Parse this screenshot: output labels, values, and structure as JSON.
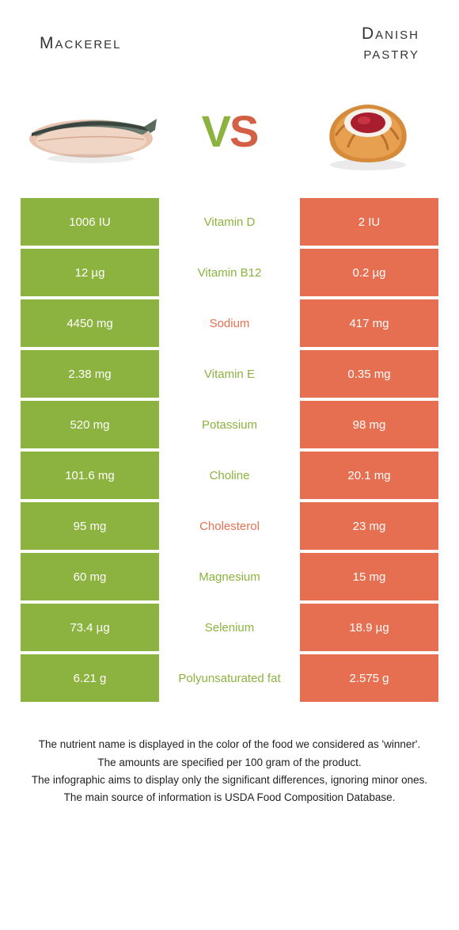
{
  "header": {
    "left_title": "Mackerel",
    "right_title_line1": "Danish",
    "right_title_line2": "pastry",
    "vs_v": "V",
    "vs_s": "S"
  },
  "colors": {
    "green": "#8cb23f",
    "orange": "#e76f51",
    "vs_green": "#8cb23f",
    "vs_orange": "#d35f44",
    "text_dark": "#333333"
  },
  "rows": [
    {
      "left": "1006 IU",
      "label": "Vitamin D",
      "right": "2 IU",
      "winner": "left"
    },
    {
      "left": "12 µg",
      "label": "Vitamin B12",
      "right": "0.2 µg",
      "winner": "left"
    },
    {
      "left": "4450 mg",
      "label": "Sodium",
      "right": "417 mg",
      "winner": "right"
    },
    {
      "left": "2.38 mg",
      "label": "Vitamin E",
      "right": "0.35 mg",
      "winner": "left"
    },
    {
      "left": "520 mg",
      "label": "Potassium",
      "right": "98 mg",
      "winner": "left"
    },
    {
      "left": "101.6 mg",
      "label": "Choline",
      "right": "20.1 mg",
      "winner": "left"
    },
    {
      "left": "95 mg",
      "label": "Cholesterol",
      "right": "23 mg",
      "winner": "right"
    },
    {
      "left": "60 mg",
      "label": "Magnesium",
      "right": "15 mg",
      "winner": "left"
    },
    {
      "left": "73.4 µg",
      "label": "Selenium",
      "right": "18.9 µg",
      "winner": "left"
    },
    {
      "left": "6.21 g",
      "label": "Polyunsaturated fat",
      "right": "2.575 g",
      "winner": "left"
    }
  ],
  "footer": {
    "line1": "The nutrient name is displayed in the color of the food we considered as 'winner'.",
    "line2": "The amounts are specified per 100 gram of the product.",
    "line3": "The infographic aims to display only the significant differences, ignoring minor ones.",
    "line4": "The main source of information is USDA Food Composition Database."
  }
}
